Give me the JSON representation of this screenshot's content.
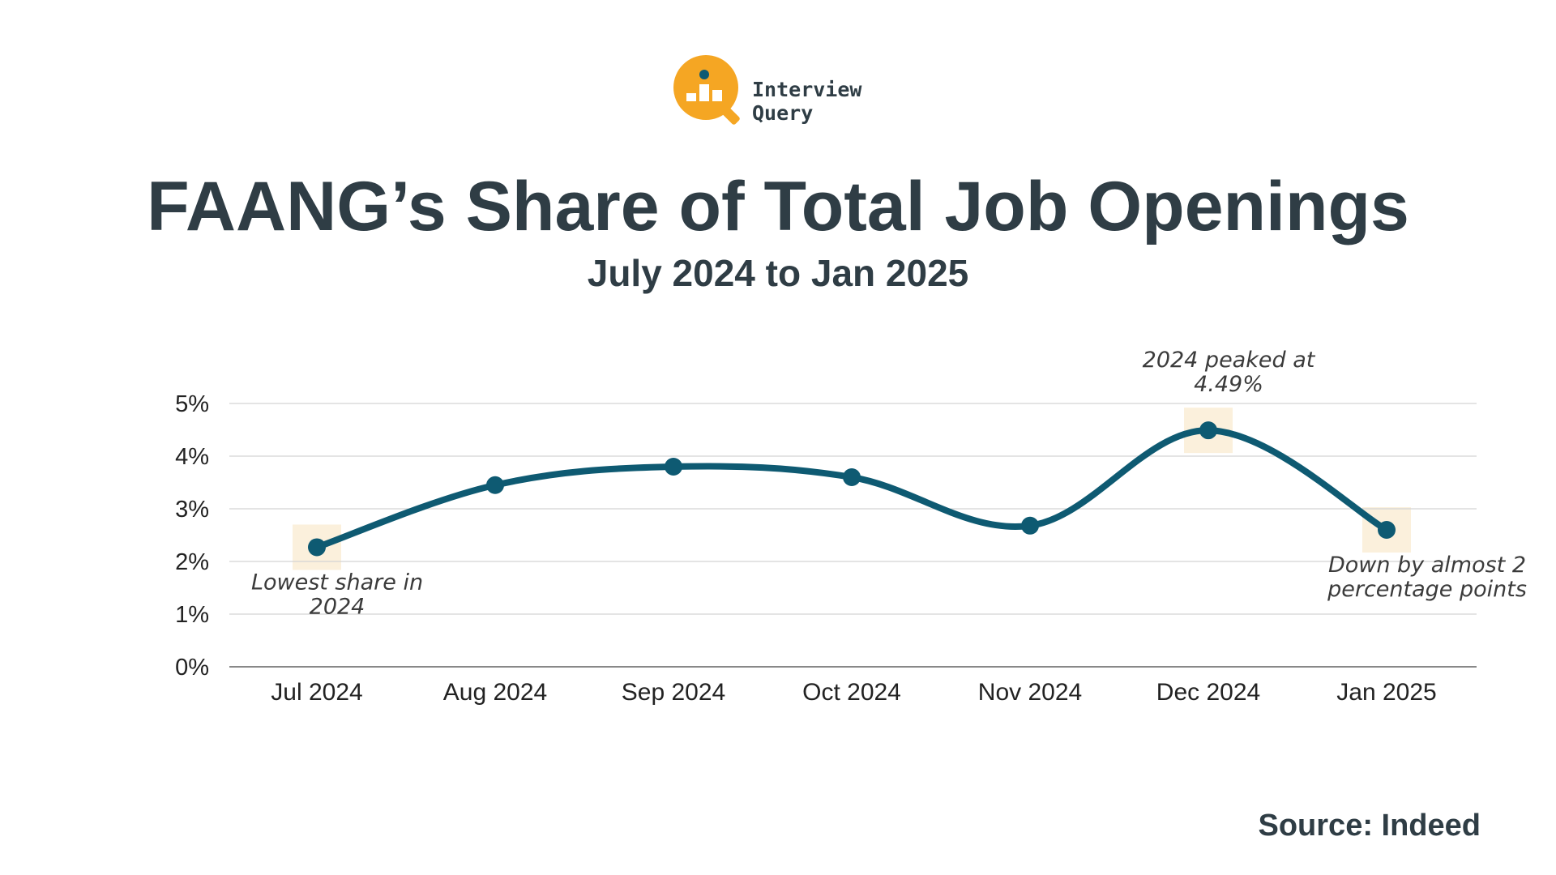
{
  "brand": {
    "name": "Interview Query",
    "accent": "#f5a623",
    "dot": "#0e5a72"
  },
  "header": {
    "title": "FAANG’s Share of Total Job Openings",
    "subtitle": "July 2024 to Jan 2025"
  },
  "chart_data": {
    "type": "line",
    "title": "FAANG’s Share of Total Job Openings",
    "subtitle": "July 2024 to Jan 2025",
    "xlabel": "",
    "ylabel": "",
    "categories": [
      "Jul 2024",
      "Aug 2024",
      "Sep 2024",
      "Oct 2024",
      "Nov 2024",
      "Dec 2024",
      "Jan 2025"
    ],
    "series": [
      {
        "name": "FAANG share of job openings",
        "values": [
          2.27,
          3.45,
          3.8,
          3.6,
          2.68,
          4.49,
          2.6
        ],
        "color": "#0e5a72"
      }
    ],
    "ylim": [
      0,
      5
    ],
    "yticks": [
      0,
      1,
      2,
      3,
      4,
      5
    ],
    "ytick_labels": [
      "0%",
      "1%",
      "2%",
      "3%",
      "4%",
      "5%"
    ],
    "grid": true,
    "highlight_color": "#fbf0dc",
    "annotations": [
      {
        "index": 0,
        "lines": [
          "Lowest share in",
          "2024"
        ],
        "position": "below"
      },
      {
        "index": 5,
        "lines": [
          "2024 peaked at",
          "4.49%"
        ],
        "position": "above"
      },
      {
        "index": 6,
        "lines": [
          "Down by almost 2",
          "percentage points"
        ],
        "position": "below"
      }
    ]
  },
  "footer": {
    "source": "Source: Indeed"
  }
}
